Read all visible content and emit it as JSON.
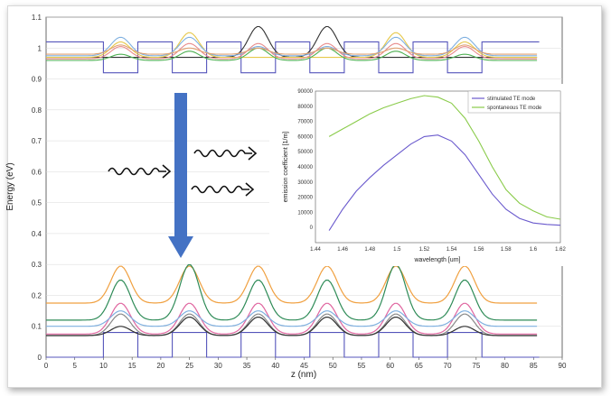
{
  "chart_data": [
    {
      "type": "line",
      "xlabel": "z (nm)",
      "ylabel": "Energy (eV)",
      "xlim": [
        0,
        90
      ],
      "ylim": [
        0,
        1.1
      ],
      "x_ticks": [
        "0",
        "5",
        "10",
        "15",
        "20",
        "25",
        "30",
        "35",
        "40",
        "45",
        "50",
        "55",
        "60",
        "65",
        "70",
        "75",
        "80",
        "85",
        "90"
      ],
      "y_ticks": [
        "0",
        "0.1",
        "0.2",
        "0.3",
        "0.4",
        "0.5",
        "0.6",
        "0.7",
        "0.8",
        "0.9",
        "1",
        "1.1"
      ],
      "conduction_band": {
        "color": "#5555bb",
        "barrier_energy": 1.02,
        "well_energy": 0.92,
        "wells": [
          [
            10,
            16
          ],
          [
            22,
            28
          ],
          [
            34,
            40
          ],
          [
            46,
            52
          ],
          [
            58,
            64
          ],
          [
            70,
            76
          ]
        ]
      },
      "valence_band": {
        "color": "#5555bb",
        "barrier_energy": 0.0,
        "well_energy": 0.08,
        "wells": [
          [
            10,
            16
          ],
          [
            22,
            28
          ],
          [
            34,
            40
          ],
          [
            46,
            52
          ],
          [
            58,
            64
          ],
          [
            70,
            76
          ]
        ]
      },
      "conduction_states": [
        {
          "color": "#333333",
          "level": 0.97,
          "peaks": [
            0,
            0,
            0.1,
            0.1,
            0,
            0
          ]
        },
        {
          "color": "#e6c84a",
          "level": 0.97,
          "peaks": [
            0.05,
            0.08,
            0,
            0,
            0.08,
            0.05
          ]
        },
        {
          "color": "#7fb0e0",
          "level": 0.975,
          "peaks": [
            0.06,
            0.06,
            0.03,
            0.03,
            0.06,
            0.06
          ]
        },
        {
          "color": "#e88a8a",
          "level": 0.965,
          "peaks": [
            0.04,
            0.05,
            0.05,
            0.05,
            0.05,
            0.04
          ]
        },
        {
          "color": "#4caf50",
          "level": 0.96,
          "peaks": [
            0.02,
            0.03,
            0.04,
            0.04,
            0.03,
            0.02
          ]
        },
        {
          "color": "#e0a070",
          "level": 0.98,
          "peaks": [
            0.03,
            0.02,
            0.02,
            0.02,
            0.02,
            0.03
          ]
        }
      ],
      "valence_states": [
        {
          "color": "#f0a040",
          "level": 0.175,
          "peaks": [
            0.12,
            0.12,
            0.12,
            0.12,
            0.12,
            0.12
          ]
        },
        {
          "color": "#2e8b57",
          "level": 0.12,
          "peaks": [
            0.13,
            0.18,
            0.13,
            0.13,
            0.18,
            0.13
          ]
        },
        {
          "color": "#e066a0",
          "level": 0.075,
          "peaks": [
            0.1,
            0.1,
            0.1,
            0.1,
            0.1,
            0.1
          ]
        },
        {
          "color": "#888888",
          "level": 0.07,
          "peaks": [
            0.07,
            0.07,
            0.07,
            0.07,
            0.07,
            0.07
          ]
        },
        {
          "color": "#7fb0e0",
          "level": 0.1,
          "peaks": [
            0.05,
            0.05,
            0.05,
            0.05,
            0.05,
            0.05
          ]
        },
        {
          "color": "#333333",
          "level": 0.07,
          "peaks": [
            0.03,
            0.06,
            0.06,
            0.06,
            0.06,
            0.03
          ]
        }
      ]
    },
    {
      "type": "line",
      "xlabel": "wavelength [um]",
      "ylabel": "emission coefficient [1/m]",
      "xlim": [
        1.44,
        1.62
      ],
      "ylim": [
        -10000,
        90000
      ],
      "x_ticks": [
        "1.44",
        "1.46",
        "1.48",
        "1.5",
        "1.52",
        "1.54",
        "1.56",
        "1.58",
        "1.6",
        "1.62"
      ],
      "y_ticks": [
        "0",
        "10000",
        "20000",
        "30000",
        "40000",
        "50000",
        "60000",
        "70000",
        "80000",
        "90000"
      ],
      "legend_position": "top-right",
      "series": [
        {
          "name": "stimulated TE mode",
          "color": "#6a5acd",
          "x": [
            1.45,
            1.46,
            1.47,
            1.48,
            1.49,
            1.5,
            1.51,
            1.52,
            1.53,
            1.54,
            1.55,
            1.56,
            1.57,
            1.58,
            1.59,
            1.6,
            1.61,
            1.62
          ],
          "y": [
            -2000,
            12000,
            24000,
            33000,
            41000,
            48000,
            55000,
            60000,
            61000,
            57000,
            48000,
            35000,
            22000,
            12000,
            6000,
            3000,
            2000,
            1500
          ]
        },
        {
          "name": "spontaneous TE mode",
          "color": "#8acb4a",
          "x": [
            1.45,
            1.46,
            1.47,
            1.48,
            1.49,
            1.5,
            1.51,
            1.52,
            1.53,
            1.54,
            1.55,
            1.56,
            1.57,
            1.58,
            1.59,
            1.6,
            1.61,
            1.62
          ],
          "y": [
            60000,
            65000,
            70000,
            75000,
            79000,
            82000,
            85000,
            87000,
            86000,
            82000,
            72000,
            57000,
            40000,
            25000,
            16000,
            11000,
            7000,
            5500
          ]
        }
      ]
    }
  ]
}
